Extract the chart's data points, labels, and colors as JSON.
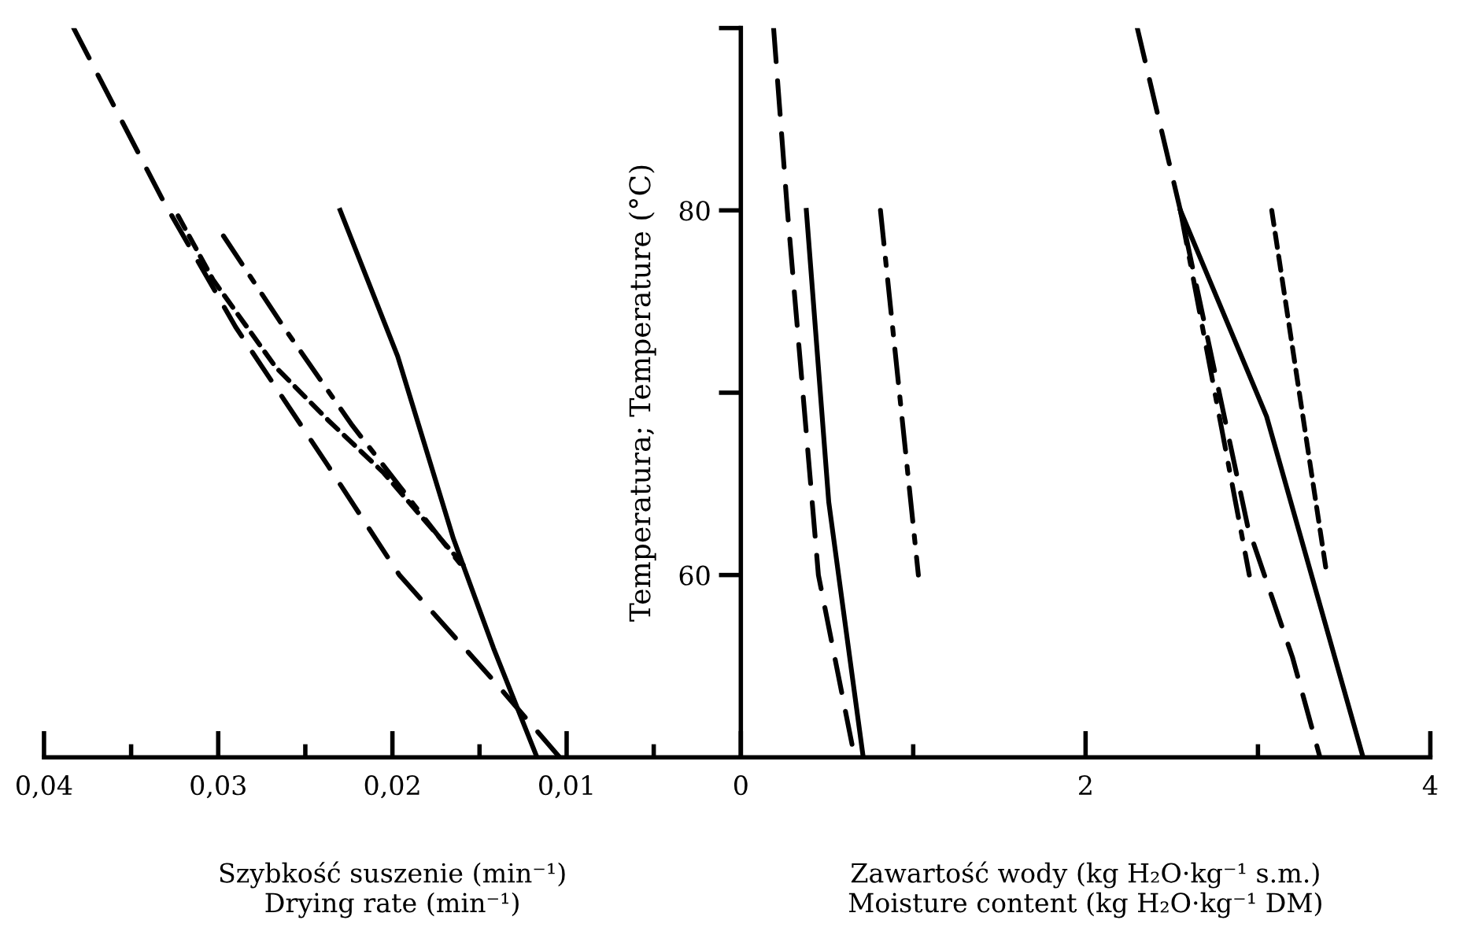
{
  "chart_data": [
    {
      "type": "line",
      "xlabel": "Szybkość suszenie (min⁻¹)\nDrying rate (min⁻¹)",
      "xlim": [
        0.04,
        0
      ],
      "xticks": [
        {
          "value": 0.04,
          "label": "0,04"
        },
        {
          "value": 0.035,
          "label": null
        },
        {
          "value": 0.03,
          "label": "0,03"
        },
        {
          "value": 0.025,
          "label": null
        },
        {
          "value": 0.02,
          "label": "0,02"
        },
        {
          "value": 0.015,
          "label": null
        },
        {
          "value": 0.01,
          "label": "0,01"
        },
        {
          "value": 0.005,
          "label": null
        }
      ],
      "ylim": [
        50,
        90
      ],
      "tick_labels": "x",
      "grid": false,
      "series": [
        {
          "color": "#000000",
          "line_style": "solid",
          "x": [
            0.023,
            0.0197,
            0.0165,
            0.0142,
            0.0117
          ],
          "values": [
            80,
            72,
            62,
            56,
            50
          ]
        },
        {
          "color": "#000000",
          "line_style": "dashed",
          "x": [
            0.0383,
            0.0332,
            0.029,
            0.0237,
            0.0196,
            0.014,
            0.0104
          ],
          "values": [
            90,
            80.6,
            73.6,
            66,
            60,
            54,
            50
          ]
        },
        {
          "color": "#000000",
          "line_style": "dashdot",
          "x": [
            0.0297,
            0.0261,
            0.0223,
            0.0188,
            0.0161
          ],
          "values": [
            78.6,
            73.4,
            68.2,
            63.9,
            60.6
          ]
        },
        {
          "color": "#000000",
          "line_style": "dotted",
          "x": [
            0.0323,
            0.0303,
            0.0267,
            0.0237,
            0.0205,
            0.0158
          ],
          "values": [
            79.7,
            76.2,
            71.4,
            68.5,
            65.6,
            60.4
          ]
        }
      ]
    },
    {
      "type": "line",
      "xlabel": "Zawartość wody (kg H₂O·kg⁻¹ s.m.)\nMoisture content (kg H₂O·kg⁻¹ DM)",
      "ylabel": "Temperatura; Temperature (°C)",
      "xlim": [
        0,
        4
      ],
      "xticks": [
        0,
        {
          "value": 1,
          "label": null
        },
        2,
        {
          "value": 3,
          "label": null
        },
        4
      ],
      "ylim": [
        50,
        90
      ],
      "yticks": [
        60,
        {
          "value": 70,
          "label": null
        },
        80,
        {
          "value": 90,
          "label": null
        }
      ],
      "grid": false,
      "series": [
        {
          "color": "#000000",
          "line_style": "solid",
          "x": [
            0.38,
            0.51,
            0.71
          ],
          "values": [
            80,
            64,
            50
          ]
        },
        {
          "color": "#000000",
          "line_style": "dashed",
          "x": [
            0.19,
            0.27,
            0.36,
            0.45,
            0.66
          ],
          "values": [
            90,
            80,
            70,
            60,
            50
          ]
        },
        {
          "color": "#000000",
          "line_style": "dashdot",
          "x": [
            0.81,
            0.92,
            1.03
          ],
          "values": [
            80,
            70,
            60
          ]
        },
        {
          "color": "#000000",
          "line_style": "solid",
          "x": [
            2.55,
            3.05,
            3.61
          ],
          "values": [
            80,
            68.7,
            50
          ]
        },
        {
          "color": "#000000",
          "line_style": "dashed",
          "x": [
            2.3,
            2.55,
            2.94,
            3.2,
            3.36
          ],
          "values": [
            90,
            80,
            62.7,
            55.5,
            50
          ]
        },
        {
          "color": "#000000",
          "line_style": "dashdot",
          "x": [
            2.55,
            2.75,
            2.95
          ],
          "values": [
            80,
            70,
            60
          ]
        },
        {
          "color": "#000000",
          "line_style": "dotted",
          "x": [
            3.08,
            3.24,
            3.4
          ],
          "values": [
            80,
            70,
            60
          ]
        }
      ]
    }
  ]
}
